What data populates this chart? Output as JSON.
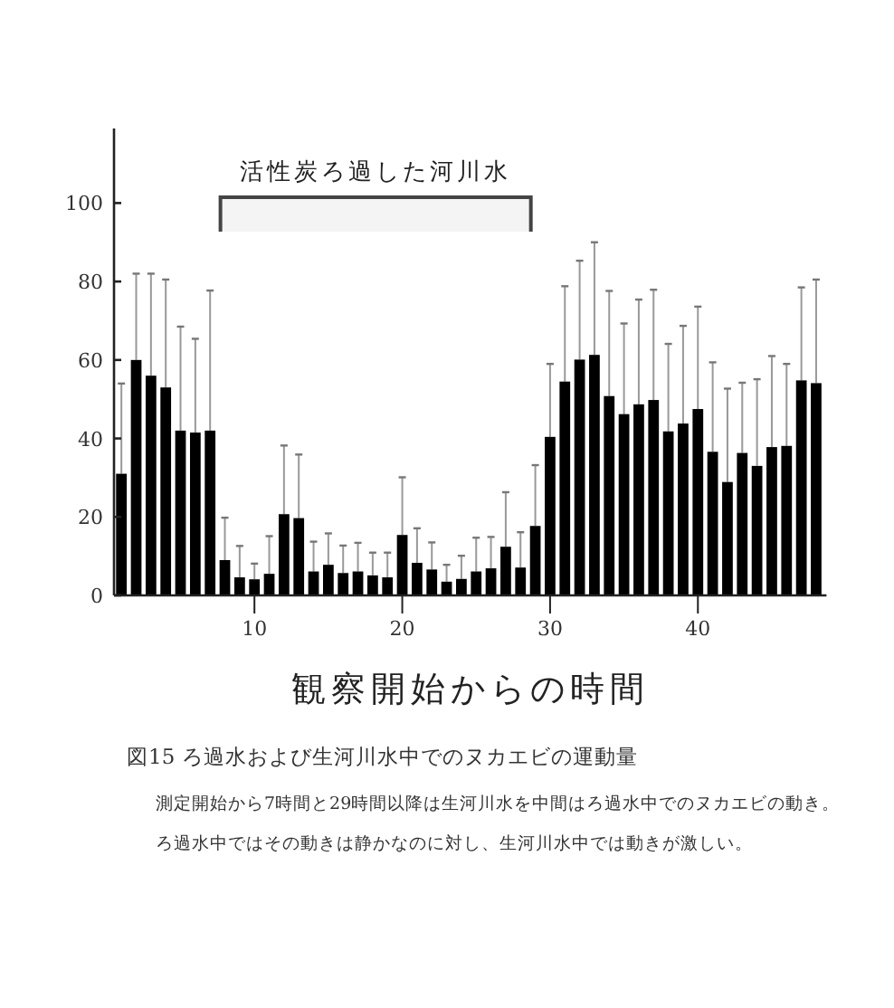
{
  "chart_data": {
    "type": "bar",
    "xlabel": "観察開始からの時間",
    "x": [
      1,
      2,
      3,
      4,
      5,
      6,
      7,
      8,
      9,
      10,
      11,
      12,
      13,
      14,
      15,
      16,
      17,
      18,
      19,
      20,
      21,
      22,
      23,
      24,
      25,
      26,
      27,
      28,
      29,
      30,
      31,
      32,
      33,
      34,
      35,
      36,
      37,
      38,
      39,
      40,
      41,
      42,
      43,
      44,
      45,
      46,
      47,
      48
    ],
    "values": [
      31,
      60,
      56,
      53,
      42,
      41.5,
      42,
      9,
      4.6,
      4.1,
      5.5,
      20.7,
      19.7,
      6.1,
      7.8,
      5.7,
      6.1,
      5.1,
      4.6,
      15.4,
      8.3,
      6.6,
      3.5,
      4.2,
      6.1,
      6.9,
      12.4,
      7.1,
      17.7,
      40.4,
      54.5,
      60.1,
      61.3,
      50.8,
      46.2,
      48.7,
      49.8,
      41.8,
      43.8,
      47.5,
      36.6,
      28.9,
      36.3,
      33,
      37.8,
      38.1,
      54.8,
      54.1
    ],
    "errors": [
      [
        31,
        54
      ],
      [
        60,
        82
      ],
      [
        56,
        82
      ],
      [
        53,
        80.5
      ],
      [
        42,
        68.5
      ],
      [
        41.5,
        65.4
      ],
      [
        42,
        77.7
      ],
      [
        9,
        19.8
      ],
      [
        4.6,
        12.6
      ],
      [
        4.1,
        8.1
      ],
      [
        5.5,
        15.1
      ],
      [
        20.7,
        38.2
      ],
      [
        19.7,
        35.9
      ],
      [
        6.1,
        13.7
      ],
      [
        7.8,
        15.8
      ],
      [
        5.7,
        12.7
      ],
      [
        6.1,
        13.4
      ],
      [
        5.1,
        10.9
      ],
      [
        4.6,
        10.9
      ],
      [
        15.4,
        30.1
      ],
      [
        8.3,
        17.1
      ],
      [
        6.6,
        13.5
      ],
      [
        3.5,
        7.8
      ],
      [
        4.2,
        10.1
      ],
      [
        6.1,
        14.7
      ],
      [
        6.9,
        14.9
      ],
      [
        12.4,
        26.3
      ],
      [
        7.1,
        16.1
      ],
      [
        17.7,
        33.2
      ],
      [
        40.4,
        59
      ],
      [
        54.5,
        78.8
      ],
      [
        60.1,
        85.3
      ],
      [
        61.3,
        90
      ],
      [
        50.8,
        77.6
      ],
      [
        46.2,
        69.3
      ],
      [
        48.7,
        75.4
      ],
      [
        49.8,
        77.9
      ],
      [
        41.8,
        64.1
      ],
      [
        43.8,
        68.7
      ],
      [
        47.5,
        73.6
      ],
      [
        36.6,
        59.4
      ],
      [
        28.9,
        52.7
      ],
      [
        36.3,
        54.2
      ],
      [
        33,
        55.1
      ],
      [
        37.8,
        61
      ],
      [
        38.1,
        59
      ],
      [
        54.8,
        78.5
      ],
      [
        54.1,
        80.5
      ]
    ],
    "color": "#000000",
    "xlim": [
      0.5,
      48.7
    ],
    "xticks": [
      10,
      20,
      30,
      40
    ],
    "ylim": [
      0,
      119
    ],
    "yticks": [
      0,
      20,
      40,
      60,
      80,
      100
    ],
    "bands": [
      {
        "axis": "x",
        "from": 7.7,
        "to": 28.7,
        "label": "活性炭ろ過した河川水"
      }
    ],
    "annotations": [
      "図15 ろ過水および生河川水中でのヌカエビの運動量",
      "測定開始から7時間と29時間以降は生河川水を中間はろ過水中でのヌカエビの動き。",
      "ろ過水中ではその動きは静かなのに対し、生河川水中では動きが激しい。"
    ]
  }
}
